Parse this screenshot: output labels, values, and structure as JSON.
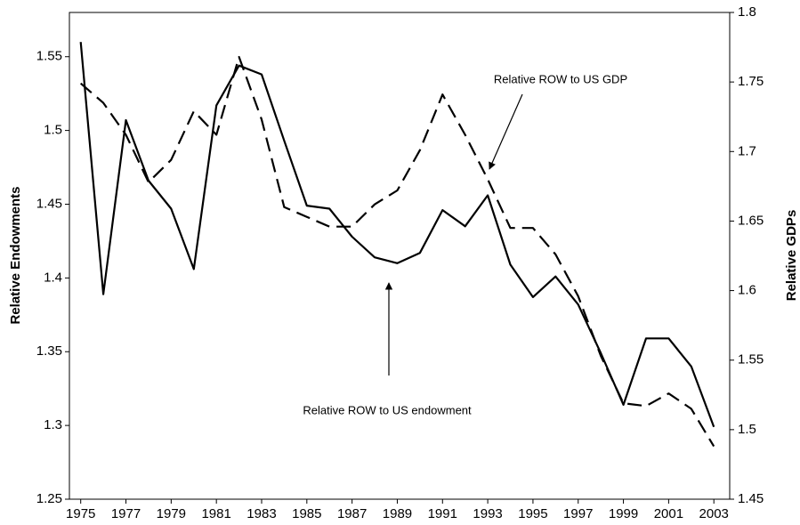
{
  "chart_data": {
    "type": "line",
    "x": [
      1975,
      1976,
      1977,
      1978,
      1979,
      1980,
      1981,
      1982,
      1983,
      1984,
      1985,
      1986,
      1987,
      1988,
      1989,
      1990,
      1991,
      1992,
      1993,
      1994,
      1995,
      1996,
      1997,
      1998,
      1999,
      2000,
      2001,
      2002,
      2003
    ],
    "xlim": [
      1974.5,
      2003.7
    ],
    "xticks": [
      1975,
      1977,
      1979,
      1981,
      1983,
      1985,
      1987,
      1989,
      1991,
      1993,
      1995,
      1997,
      1999,
      2001,
      2003
    ],
    "ylim": [
      1.25,
      1.58
    ],
    "yticks": [
      1.25,
      1.3,
      1.35,
      1.4,
      1.45,
      1.5,
      1.55
    ],
    "y2lim": [
      1.45,
      1.8
    ],
    "y2ticks": [
      1.45,
      1.5,
      1.55,
      1.6,
      1.65,
      1.7,
      1.75,
      1.8
    ],
    "ylabel": "Relative Endowments",
    "y2label": "Relative GDPs",
    "series": [
      {
        "name": "Relative ROW to US endowment",
        "color": "#000000",
        "dash": "solid",
        "values": [
          1.56,
          1.389,
          1.507,
          1.466,
          1.447,
          1.406,
          1.517,
          1.544,
          1.538,
          1.493,
          1.449,
          1.447,
          1.428,
          1.414,
          1.41,
          1.417,
          1.446,
          1.435,
          1.456,
          1.409,
          1.387,
          1.401,
          1.382,
          1.349,
          1.314,
          1.359,
          1.359,
          1.34,
          1.299
        ]
      },
      {
        "name": "Relative ROW to US GDP",
        "color": "#000000",
        "dash": "dashed",
        "axis": "y2",
        "values": [
          1.749,
          1.735,
          1.712,
          1.678,
          1.694,
          1.729,
          1.712,
          1.768,
          1.723,
          1.66,
          1.653,
          1.646,
          1.646,
          1.662,
          1.672,
          1.701,
          1.741,
          1.712,
          1.68,
          1.645,
          1.645,
          1.626,
          1.596,
          1.553,
          1.519,
          1.517,
          1.526,
          1.515,
          1.488
        ]
      }
    ]
  }
}
